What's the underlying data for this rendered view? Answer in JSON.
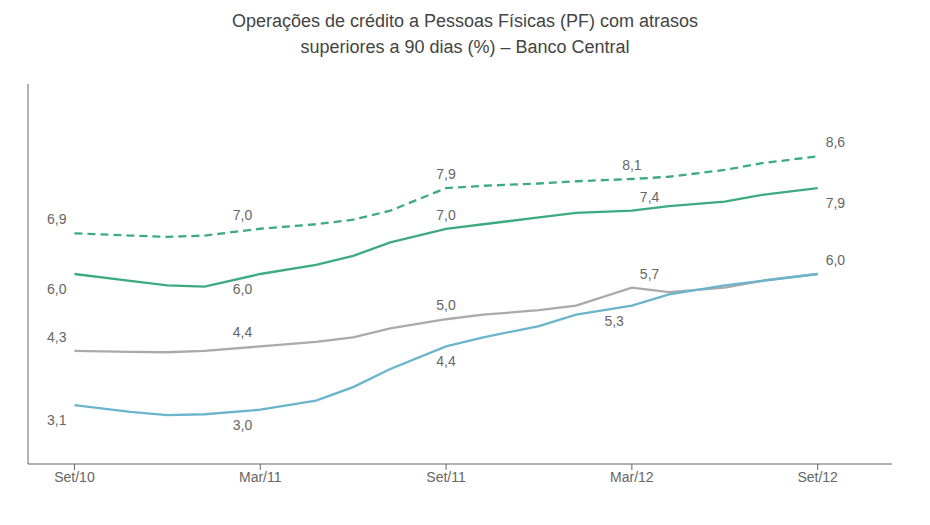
{
  "chart_data": {
    "type": "line",
    "title": "Operações de crédito a Pessoas Físicas (PF) com atrasos\nsuperiores a 90 dias (%) – Banco Central",
    "x": [
      0,
      0.3,
      0.5,
      0.7,
      1.0,
      1.3,
      1.5,
      1.7,
      2.0,
      2.2,
      2.5,
      2.7,
      3.0,
      3.2,
      3.5,
      3.7,
      4.0
    ],
    "series": [
      {
        "color": "#3daa82",
        "line_style": "dashed",
        "values": [
          6.9,
          6.85,
          6.82,
          6.85,
          7.0,
          7.1,
          7.2,
          7.4,
          7.9,
          7.95,
          8.0,
          8.05,
          8.1,
          8.15,
          8.3,
          8.45,
          8.6
        ],
        "value_labels": [
          "6,9",
          null,
          null,
          null,
          "7,0",
          null,
          null,
          null,
          "7,9",
          null,
          null,
          null,
          "8,1",
          null,
          null,
          null,
          "8,6"
        ]
      },
      {
        "color": "#3daa82",
        "line_style": "solid",
        "values": [
          6.0,
          5.85,
          5.75,
          5.72,
          6.0,
          6.2,
          6.4,
          6.7,
          7.0,
          7.1,
          7.25,
          7.35,
          7.4,
          7.5,
          7.6,
          7.75,
          7.9
        ],
        "value_labels": [
          "6,0",
          null,
          null,
          null,
          "6,0",
          null,
          null,
          null,
          "7,0",
          null,
          null,
          null,
          "7,4",
          null,
          null,
          null,
          "7,9"
        ]
      },
      {
        "color": "#aaaaaa",
        "line_style": "solid",
        "values": [
          4.3,
          4.28,
          4.27,
          4.3,
          4.4,
          4.5,
          4.6,
          4.8,
          5.0,
          5.1,
          5.2,
          5.3,
          5.7,
          5.6,
          5.7,
          5.85,
          6.0
        ],
        "value_labels": [
          "4,3",
          null,
          null,
          null,
          "4,4",
          null,
          null,
          null,
          "5,0",
          null,
          null,
          null,
          "5,7",
          null,
          null,
          null,
          "6,0"
        ]
      },
      {
        "color": "#6ab4cc",
        "line_style": "solid",
        "values": [
          3.1,
          2.95,
          2.88,
          2.9,
          3.0,
          3.2,
          3.5,
          3.9,
          4.4,
          4.6,
          4.85,
          5.1,
          5.3,
          5.55,
          5.75,
          5.85,
          6.0
        ],
        "value_labels": [
          "3,1",
          null,
          null,
          null,
          "3,0",
          null,
          null,
          null,
          "4,4",
          null,
          null,
          null,
          "5,3",
          null,
          null,
          null,
          null
        ]
      }
    ],
    "xlim": [
      -0.25,
      4.4
    ],
    "xticks": [
      {
        "value": 0,
        "label": "Set/10"
      },
      {
        "value": 1,
        "label": "Mar/11"
      },
      {
        "value": 2,
        "label": "Set/11"
      },
      {
        "value": 3,
        "label": "Mar/12"
      },
      {
        "value": 4,
        "label": "Set/12"
      }
    ],
    "ylim": [
      1.8,
      10.2
    ],
    "tick_labels": "x",
    "data_labels": true,
    "grid": false
  }
}
